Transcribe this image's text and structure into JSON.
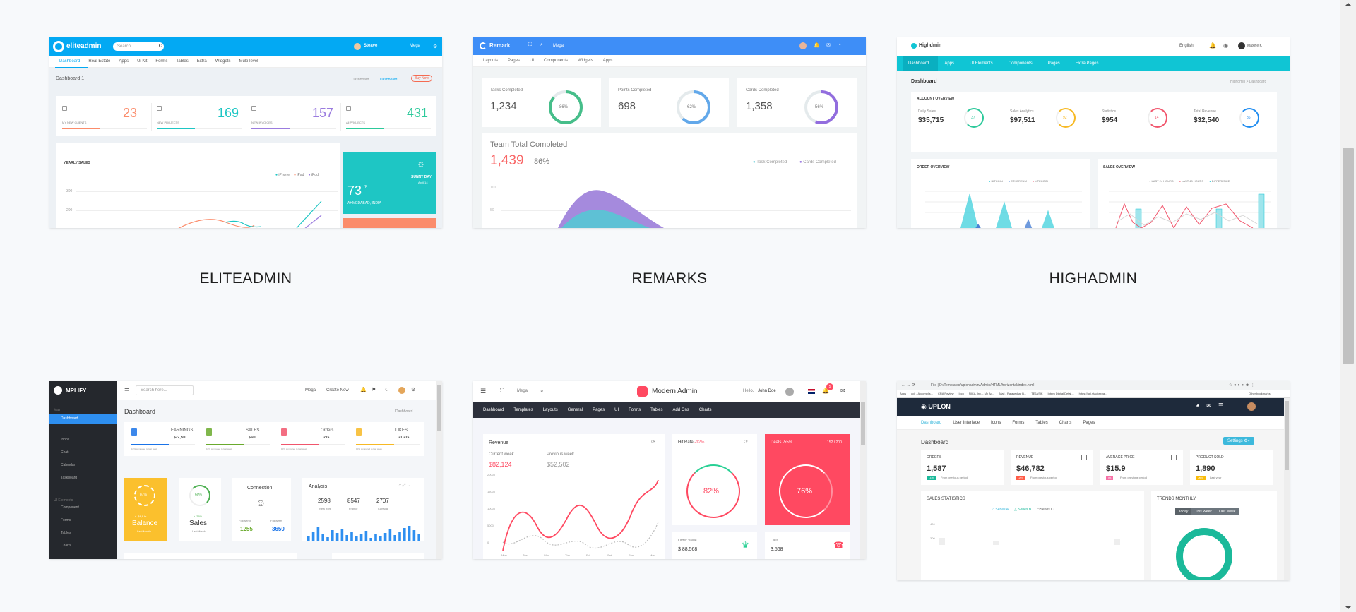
{
  "templates": [
    {
      "caption": "ELITEADMIN",
      "brand": "eliteadmin",
      "search_placeholder": "Search...",
      "user": "Steave",
      "mega": "Mega",
      "tabs": [
        "Dashboard",
        "Real Estate",
        "Apps",
        "Ui Kit",
        "Forms",
        "Tables",
        "Extra",
        "Widgets",
        "Multi-level"
      ],
      "page_title": "Dashboard 1",
      "breadcrumb": [
        "Dashboard",
        "Dashboard"
      ],
      "buy_label": "Buy Now",
      "stats": [
        {
          "label": "MY NEW CLIENTS",
          "value": "23",
          "color": "#fb8c6b"
        },
        {
          "label": "NEW PROJECTS",
          "value": "169",
          "color": "#1ec6c4"
        },
        {
          "label": "NEW INVOICES",
          "value": "157",
          "color": "#9b7cdf"
        },
        {
          "label": "All PROJECTS",
          "value": "431",
          "color": "#2dc99b"
        }
      ],
      "chart_title": "YEARLY SALES",
      "legend": [
        "iPhone",
        "iPad",
        "iPod"
      ],
      "y_ticks": [
        "300",
        "200"
      ],
      "weather_day": "SUNNY DAY",
      "weather_date": "April 14",
      "weather_temp": "73",
      "weather_unit": "°F",
      "weather_city": "AHMEDABAD, INDIA"
    },
    {
      "caption": "REMARKS",
      "brand": "Remark",
      "mega": "Mega",
      "menu": [
        "Layouts",
        "Pages",
        "UI",
        "Components",
        "Widgets",
        "Apps"
      ],
      "kpis": [
        {
          "label": "Tasks Completed",
          "value": "1,234",
          "pct": "86%",
          "frac": 0.86,
          "color": "#46be8a"
        },
        {
          "label": "Points Completed",
          "value": "698",
          "pct": "62%",
          "frac": 0.62,
          "color": "#62a8ea"
        },
        {
          "label": "Cards Completed",
          "value": "1,358",
          "pct": "56%",
          "frac": 0.56,
          "color": "#926dde"
        }
      ],
      "team_title": "Team Total Completed",
      "team_value": "1,439",
      "team_pct": "86%",
      "legend": [
        "Task Completed",
        "Cards Completed"
      ],
      "y_ticks": [
        "100",
        "50"
      ]
    },
    {
      "caption": "HIGHADMIN",
      "brand": "Highdmin",
      "language": "English",
      "user": "Maxine K",
      "menu": [
        "Dashboard",
        "Apps",
        "UI Elements",
        "Components",
        "Pages",
        "Extra Pages"
      ],
      "page_title": "Dashboard",
      "breadcrumb": "Highdmin  >  Dashboard",
      "overview_title": "ACCOUNT OVERVIEW",
      "accounts": [
        {
          "label": "Daily Sales",
          "value": "$35,715",
          "ring": "37",
          "color": "#2dc99b"
        },
        {
          "label": "Sales Analytics",
          "value": "$97,511",
          "ring": "92",
          "color": "#f7b924"
        },
        {
          "label": "Statistics",
          "value": "$954",
          "ring": "14",
          "color": "#f1556c"
        },
        {
          "label": "Total Revenue",
          "value": "$32,540",
          "ring": "86",
          "color": "#1f8cf0"
        }
      ],
      "order_title": "ORDER OVERVIEW",
      "order_legend": [
        "BITCOIN",
        "ETHEREUM",
        "LITECOIN"
      ],
      "sales_title": "SALES OVERVIEW",
      "sales_legend": [
        "LAST 24 HOURS",
        "LAST 48 HOURS",
        "DIFFERENCE"
      ]
    },
    {
      "caption": "",
      "brand": "MPLIFY",
      "search_placeholder": "Search here...",
      "mega": "Mega",
      "create": "Create Now",
      "sidebar_main": "Main",
      "sidebar": [
        "Dashboard",
        "Inbox",
        "Chat",
        "Calendar",
        "Taskboard"
      ],
      "sidebar_ui": "UI Elements",
      "sidebar2": [
        "Component",
        "Forms",
        "Tables",
        "Charts"
      ],
      "page_title": "Dashboard",
      "breadcrumb": "Dashboard",
      "stats": [
        {
          "label": "EARNINGS",
          "value": "$22,500",
          "color": "#1a73e8",
          "sub": "10% compared to last week"
        },
        {
          "label": "SALES",
          "value": "$500",
          "color": "#6aaa2d",
          "sub": "10% compared to last week"
        },
        {
          "label": "Orders",
          "value": "215",
          "color": "#f1556c",
          "sub": "10% compared to last week"
        },
        {
          "label": "LIKES",
          "value": "21,215",
          "color": "#f7b924",
          "sub": "10% compared to last week"
        }
      ],
      "balance_pct": "87%",
      "balance_delta": "▲ $4,8 kr",
      "balance_label": "Balance",
      "balance_sub": "Last Month",
      "sales_pct": "60%",
      "sales_delta": "▲ 25%",
      "sales_label": "Sales",
      "sales_sub": "Last Week",
      "connection_title": "Connection",
      "following_label": "Following",
      "followers_label": "Followers",
      "following": "1255",
      "followers": "3650",
      "analysis_title": "Analysis",
      "analysis": [
        {
          "value": "2598",
          "label": "New York"
        },
        {
          "value": "8547",
          "label": "France"
        },
        {
          "value": "2707",
          "label": "Canada"
        }
      ]
    },
    {
      "caption": "",
      "brand": "Modern Admin",
      "mega": "Mega",
      "greeting": "Hello,",
      "user": "John Doe",
      "notif": "5",
      "menu": [
        "Dashboard",
        "Templates",
        "Layouts",
        "General",
        "Pages",
        "UI",
        "Forms",
        "Tables",
        "Add Ons",
        "Charts"
      ],
      "revenue_title": "Revenue",
      "current_label": "Current week",
      "current_value": "$82,124",
      "previous_label": "Previous week",
      "previous_value": "$52,502",
      "y_ticks": [
        "20000",
        "15000",
        "10000",
        "5000",
        "0"
      ],
      "days": [
        "Mon",
        "Tue",
        "Wed",
        "Thu",
        "Fri",
        "Sat",
        "Sun",
        "Mon"
      ],
      "hit_title": "Hit Rate",
      "hit_delta": "-12%",
      "hit_pct": "82%",
      "deals_title": "Deals",
      "deals_delta": "-55%",
      "deals_count": "152 / 200",
      "deals_pct": "76%",
      "order_label": "Order Value",
      "order_value": "$ 88,568",
      "calls_label": "Calls",
      "calls_value": "3,568"
    },
    {
      "caption": "",
      "url": "File | D:/Templates/uplonadmin/Admin/HTML/horizontal/index.html",
      "bookmarks": [
        "Apps",
        "ccit - Accomplis...",
        "CRA Review",
        "Ixco",
        "NICA, Inc. - My Ap...",
        "Mail - Rajasekhar B...",
        "TEJASIK",
        "Intern Digital Detail...",
        "https://api.stackexpa..."
      ],
      "other_bookmarks": "Other bookmarks",
      "brand": "UPLON",
      "menu": [
        "Dashboard",
        "User Interface",
        "Icons",
        "Forms",
        "Tables",
        "Charts",
        "Pages"
      ],
      "page_title": "Dashboard",
      "settings": "Settings",
      "stats": [
        {
          "label": "ORDERS",
          "value": "1,587",
          "badge": "+11%",
          "badge_color": "#1bb99a",
          "sub": "From previous period"
        },
        {
          "label": "REVENUE",
          "value": "$46,782",
          "badge": "-29%",
          "badge_color": "#ff5d48",
          "sub": "From previous period"
        },
        {
          "label": "AVERAGE PRICE",
          "value": "$15.9",
          "badge": "0%",
          "badge_color": "#f672a7",
          "sub": "From previous period"
        },
        {
          "label": "PRODUCT SOLD",
          "value": "1,890",
          "badge": "+89%",
          "badge_color": "#f9bc0b",
          "sub": "Last year"
        }
      ],
      "sales_title": "SALES STATISTICS",
      "series": [
        "Series A",
        "Series B",
        "Series C"
      ],
      "y_ticks": [
        "400",
        "300"
      ],
      "trends_title": "TRENDS MONTHLY",
      "trend_tabs": [
        "Today",
        "This Week",
        "Last Week"
      ]
    }
  ]
}
